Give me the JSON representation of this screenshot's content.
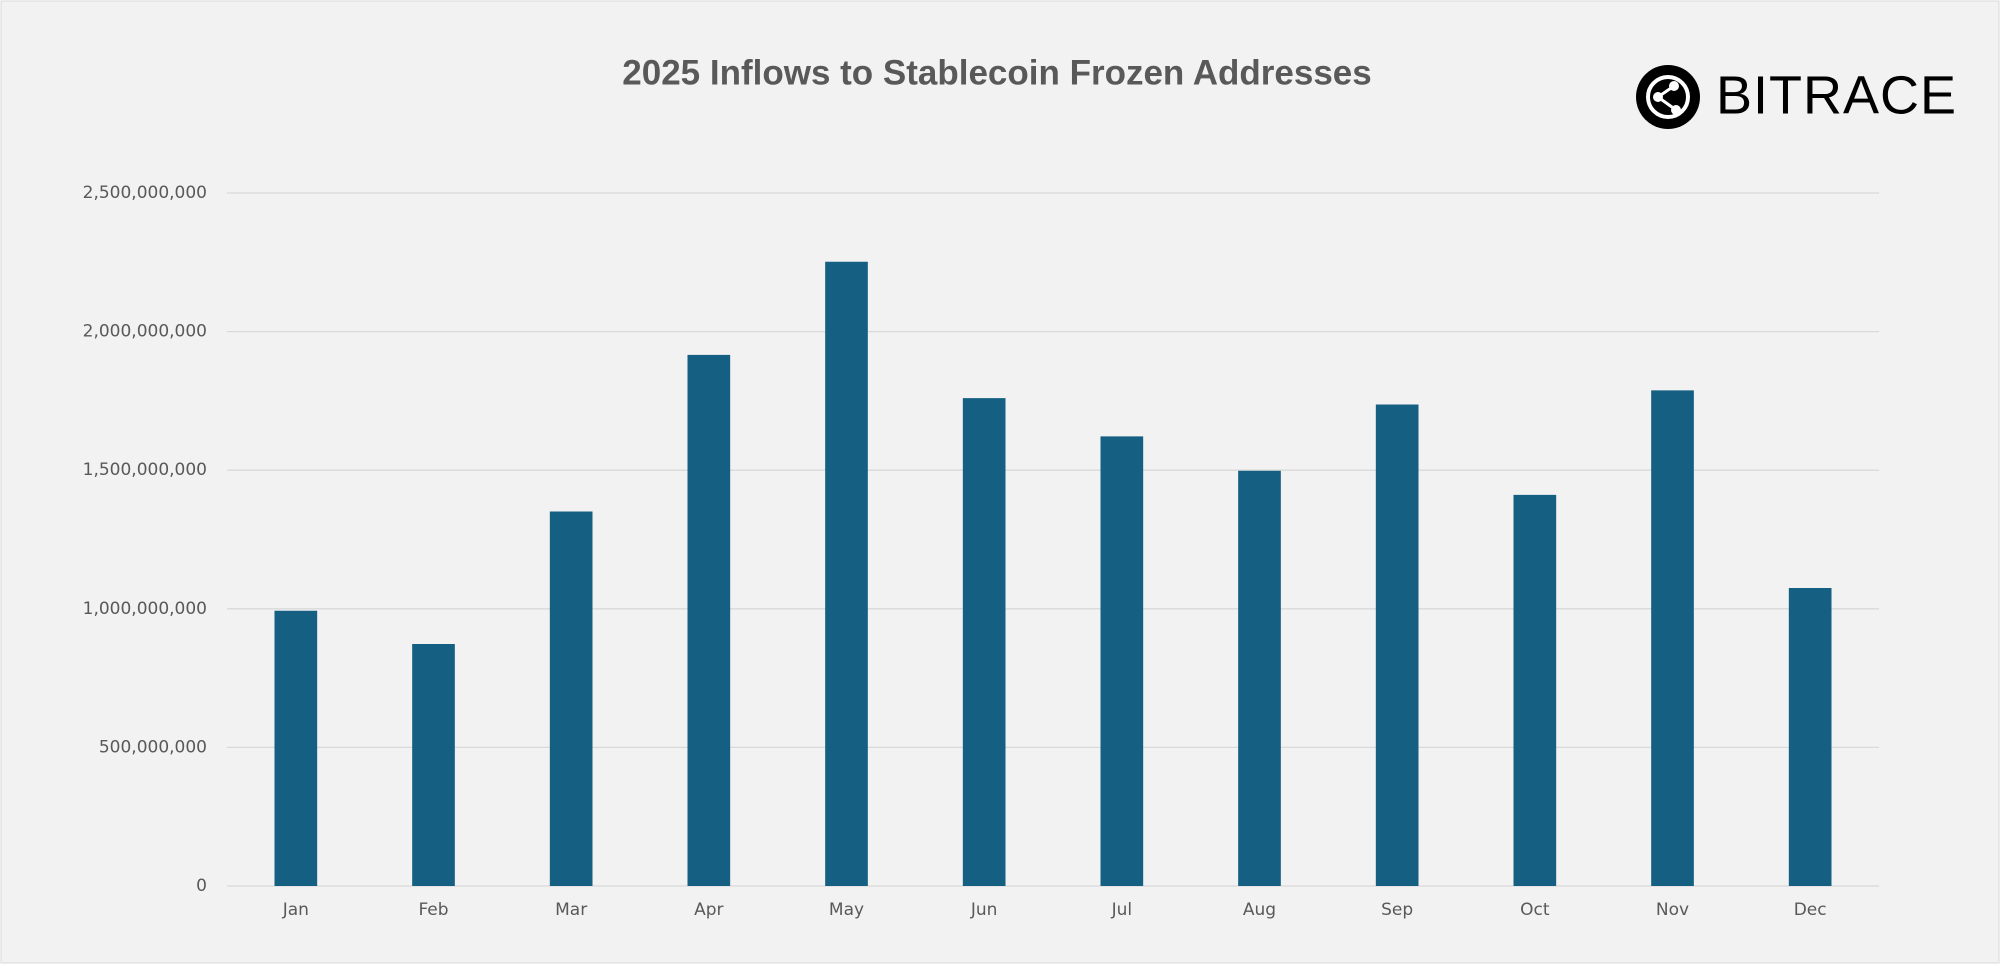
{
  "chart_data": {
    "type": "bar",
    "title": "2025 Inflows to Stablecoin Frozen Addresses",
    "categories": [
      "Jan",
      "Feb",
      "Mar",
      "Apr",
      "May",
      "Jun",
      "Jul",
      "Aug",
      "Sep",
      "Oct",
      "Nov",
      "Dec"
    ],
    "values": [
      993000000,
      873000000,
      1351000000,
      1916000000,
      2252000000,
      1760000000,
      1622000000,
      1498000000,
      1737000000,
      1411000000,
      1788000000,
      1075000000
    ],
    "color": "#156082",
    "ylim": [
      0,
      2500000000
    ],
    "yticks": [
      0,
      {
        "value": 500000000,
        "label": "500,000,000"
      },
      {
        "value": 1000000000,
        "label": "1,000,000,000"
      },
      {
        "value": 1500000000,
        "label": "1,500,000,000"
      },
      {
        "value": 2000000000,
        "label": "2,000,000,000"
      },
      {
        "value": 2500000000,
        "label": "2,500,000,000"
      }
    ],
    "grid": true
  },
  "logo": "BITRACE"
}
